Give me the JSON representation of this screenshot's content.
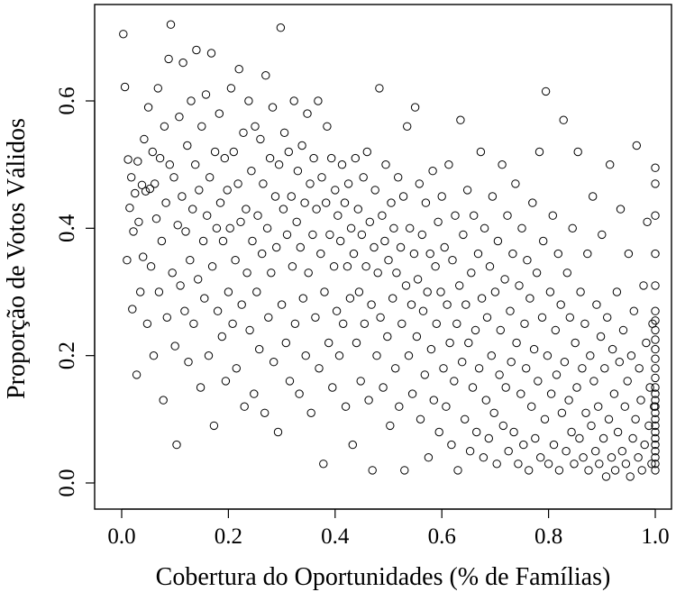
{
  "chart_data": {
    "type": "scatter",
    "title": "",
    "xlabel": "Cobertura do Oportunidades (% de Famílias)",
    "ylabel": "Proporção de Votos Válidos",
    "xlim": [
      0.0,
      1.0
    ],
    "ylim": [
      0.0,
      0.72
    ],
    "x_ticks": [
      "0.0",
      "0.2",
      "0.4",
      "0.6",
      "0.8",
      "1.0"
    ],
    "y_ticks": [
      "0.0",
      "0.2",
      "0.4",
      "0.6"
    ],
    "grid": false,
    "legend": "none",
    "marker": "open-circle",
    "point_count_estimate": 2300,
    "points": [
      [
        0.003,
        0.705
      ],
      [
        0.006,
        0.622
      ],
      [
        0.01,
        0.35
      ],
      [
        0.012,
        0.508
      ],
      [
        0.015,
        0.432
      ],
      [
        0.018,
        0.48
      ],
      [
        0.02,
        0.273
      ],
      [
        0.022,
        0.395
      ],
      [
        0.025,
        0.455
      ],
      [
        0.028,
        0.17
      ],
      [
        0.03,
        0.505
      ],
      [
        0.032,
        0.41
      ],
      [
        0.035,
        0.3
      ],
      [
        0.038,
        0.468
      ],
      [
        0.04,
        0.355
      ],
      [
        0.042,
        0.54
      ],
      [
        0.045,
        0.458
      ],
      [
        0.048,
        0.25
      ],
      [
        0.05,
        0.59
      ],
      [
        0.053,
        0.462
      ],
      [
        0.055,
        0.34
      ],
      [
        0.058,
        0.52
      ],
      [
        0.06,
        0.2
      ],
      [
        0.062,
        0.47
      ],
      [
        0.065,
        0.415
      ],
      [
        0.068,
        0.62
      ],
      [
        0.07,
        0.3
      ],
      [
        0.072,
        0.51
      ],
      [
        0.075,
        0.38
      ],
      [
        0.078,
        0.13
      ],
      [
        0.08,
        0.56
      ],
      [
        0.083,
        0.44
      ],
      [
        0.085,
        0.26
      ],
      [
        0.088,
        0.666
      ],
      [
        0.09,
        0.5
      ],
      [
        0.092,
        0.72
      ],
      [
        0.095,
        0.33
      ],
      [
        0.098,
        0.48
      ],
      [
        0.1,
        0.215
      ],
      [
        0.103,
        0.06
      ],
      [
        0.105,
        0.405
      ],
      [
        0.108,
        0.575
      ],
      [
        0.11,
        0.31
      ],
      [
        0.113,
        0.45
      ],
      [
        0.115,
        0.66
      ],
      [
        0.118,
        0.27
      ],
      [
        0.12,
        0.395
      ],
      [
        0.123,
        0.53
      ],
      [
        0.125,
        0.19
      ],
      [
        0.128,
        0.35
      ],
      [
        0.13,
        0.6
      ],
      [
        0.133,
        0.43
      ],
      [
        0.135,
        0.25
      ],
      [
        0.138,
        0.5
      ],
      [
        0.14,
        0.68
      ],
      [
        0.143,
        0.32
      ],
      [
        0.145,
        0.46
      ],
      [
        0.148,
        0.15
      ],
      [
        0.15,
        0.56
      ],
      [
        0.153,
        0.38
      ],
      [
        0.155,
        0.29
      ],
      [
        0.158,
        0.61
      ],
      [
        0.16,
        0.42
      ],
      [
        0.163,
        0.2
      ],
      [
        0.165,
        0.48
      ],
      [
        0.168,
        0.675
      ],
      [
        0.17,
        0.34
      ],
      [
        0.173,
        0.09
      ],
      [
        0.175,
        0.52
      ],
      [
        0.178,
        0.4
      ],
      [
        0.18,
        0.27
      ],
      [
        0.183,
        0.58
      ],
      [
        0.185,
        0.44
      ],
      [
        0.188,
        0.23
      ],
      [
        0.19,
        0.38
      ],
      [
        0.193,
        0.51
      ],
      [
        0.195,
        0.16
      ],
      [
        0.198,
        0.46
      ],
      [
        0.2,
        0.3
      ],
      [
        0.203,
        0.4
      ],
      [
        0.205,
        0.62
      ],
      [
        0.208,
        0.25
      ],
      [
        0.21,
        0.52
      ],
      [
        0.213,
        0.35
      ],
      [
        0.215,
        0.18
      ],
      [
        0.218,
        0.47
      ],
      [
        0.22,
        0.65
      ],
      [
        0.223,
        0.41
      ],
      [
        0.225,
        0.28
      ],
      [
        0.228,
        0.55
      ],
      [
        0.23,
        0.12
      ],
      [
        0.233,
        0.43
      ],
      [
        0.235,
        0.33
      ],
      [
        0.238,
        0.6
      ],
      [
        0.24,
        0.24
      ],
      [
        0.243,
        0.49
      ],
      [
        0.245,
        0.38
      ],
      [
        0.248,
        0.14
      ],
      [
        0.25,
        0.56
      ],
      [
        0.253,
        0.3
      ],
      [
        0.255,
        0.42
      ],
      [
        0.258,
        0.21
      ],
      [
        0.26,
        0.54
      ],
      [
        0.263,
        0.36
      ],
      [
        0.265,
        0.47
      ],
      [
        0.268,
        0.11
      ],
      [
        0.27,
        0.64
      ],
      [
        0.273,
        0.4
      ],
      [
        0.275,
        0.26
      ],
      [
        0.278,
        0.51
      ],
      [
        0.28,
        0.33
      ],
      [
        0.283,
        0.59
      ],
      [
        0.285,
        0.19
      ],
      [
        0.288,
        0.45
      ],
      [
        0.29,
        0.37
      ],
      [
        0.293,
        0.08
      ],
      [
        0.295,
        0.5
      ],
      [
        0.298,
        0.715
      ],
      [
        0.3,
        0.28
      ],
      [
        0.303,
        0.43
      ],
      [
        0.305,
        0.55
      ],
      [
        0.308,
        0.22
      ],
      [
        0.31,
        0.39
      ],
      [
        0.313,
        0.52
      ],
      [
        0.315,
        0.16
      ],
      [
        0.318,
        0.45
      ],
      [
        0.32,
        0.34
      ],
      [
        0.323,
        0.6
      ],
      [
        0.325,
        0.25
      ],
      [
        0.328,
        0.41
      ],
      [
        0.33,
        0.49
      ],
      [
        0.333,
        0.14
      ],
      [
        0.335,
        0.37
      ],
      [
        0.338,
        0.53
      ],
      [
        0.34,
        0.29
      ],
      [
        0.343,
        0.44
      ],
      [
        0.345,
        0.2
      ],
      [
        0.348,
        0.58
      ],
      [
        0.35,
        0.33
      ],
      [
        0.353,
        0.47
      ],
      [
        0.355,
        0.11
      ],
      [
        0.358,
        0.39
      ],
      [
        0.36,
        0.51
      ],
      [
        0.363,
        0.26
      ],
      [
        0.365,
        0.43
      ],
      [
        0.368,
        0.6
      ],
      [
        0.37,
        0.18
      ],
      [
        0.373,
        0.36
      ],
      [
        0.375,
        0.48
      ],
      [
        0.378,
        0.03
      ],
      [
        0.38,
        0.3
      ],
      [
        0.383,
        0.44
      ],
      [
        0.385,
        0.56
      ],
      [
        0.388,
        0.22
      ],
      [
        0.39,
        0.39
      ],
      [
        0.393,
        0.51
      ],
      [
        0.395,
        0.15
      ],
      [
        0.398,
        0.34
      ],
      [
        0.4,
        0.46
      ],
      [
        0.403,
        0.27
      ],
      [
        0.405,
        0.42
      ],
      [
        0.408,
        0.2
      ],
      [
        0.41,
        0.38
      ],
      [
        0.413,
        0.5
      ],
      [
        0.415,
        0.25
      ],
      [
        0.418,
        0.44
      ],
      [
        0.42,
        0.12
      ],
      [
        0.423,
        0.34
      ],
      [
        0.425,
        0.47
      ],
      [
        0.428,
        0.29
      ],
      [
        0.43,
        0.4
      ],
      [
        0.433,
        0.06
      ],
      [
        0.435,
        0.36
      ],
      [
        0.438,
        0.51
      ],
      [
        0.44,
        0.22
      ],
      [
        0.443,
        0.43
      ],
      [
        0.445,
        0.3
      ],
      [
        0.448,
        0.16
      ],
      [
        0.45,
        0.39
      ],
      [
        0.453,
        0.48
      ],
      [
        0.455,
        0.25
      ],
      [
        0.458,
        0.34
      ],
      [
        0.46,
        0.52
      ],
      [
        0.463,
        0.13
      ],
      [
        0.465,
        0.41
      ],
      [
        0.468,
        0.28
      ],
      [
        0.47,
        0.02
      ],
      [
        0.473,
        0.37
      ],
      [
        0.475,
        0.46
      ],
      [
        0.478,
        0.2
      ],
      [
        0.48,
        0.33
      ],
      [
        0.483,
        0.62
      ],
      [
        0.485,
        0.26
      ],
      [
        0.488,
        0.42
      ],
      [
        0.49,
        0.15
      ],
      [
        0.493,
        0.38
      ],
      [
        0.495,
        0.5
      ],
      [
        0.498,
        0.23
      ],
      [
        0.5,
        0.35
      ],
      [
        0.503,
        0.09
      ],
      [
        0.505,
        0.44
      ],
      [
        0.508,
        0.29
      ],
      [
        0.51,
        0.4
      ],
      [
        0.513,
        0.18
      ],
      [
        0.515,
        0.33
      ],
      [
        0.518,
        0.48
      ],
      [
        0.52,
        0.12
      ],
      [
        0.523,
        0.37
      ],
      [
        0.525,
        0.25
      ],
      [
        0.528,
        0.45
      ],
      [
        0.53,
        0.02
      ],
      [
        0.533,
        0.31
      ],
      [
        0.535,
        0.56
      ],
      [
        0.538,
        0.2
      ],
      [
        0.54,
        0.4
      ],
      [
        0.543,
        0.28
      ],
      [
        0.545,
        0.14
      ],
      [
        0.548,
        0.36
      ],
      [
        0.55,
        0.59
      ],
      [
        0.553,
        0.23
      ],
      [
        0.555,
        0.32
      ],
      [
        0.558,
        0.47
      ],
      [
        0.56,
        0.1
      ],
      [
        0.563,
        0.39
      ],
      [
        0.565,
        0.27
      ],
      [
        0.568,
        0.17
      ],
      [
        0.57,
        0.44
      ],
      [
        0.573,
        0.3
      ],
      [
        0.575,
        0.04
      ],
      [
        0.578,
        0.36
      ],
      [
        0.58,
        0.21
      ],
      [
        0.583,
        0.49
      ],
      [
        0.585,
        0.13
      ],
      [
        0.588,
        0.34
      ],
      [
        0.59,
        0.25
      ],
      [
        0.593,
        0.41
      ],
      [
        0.595,
        0.08
      ],
      [
        0.598,
        0.3
      ],
      [
        0.6,
        0.45
      ],
      [
        0.603,
        0.18
      ],
      [
        0.605,
        0.37
      ],
      [
        0.608,
        0.12
      ],
      [
        0.61,
        0.28
      ],
      [
        0.613,
        0.5
      ],
      [
        0.615,
        0.22
      ],
      [
        0.618,
        0.06
      ],
      [
        0.62,
        0.35
      ],
      [
        0.623,
        0.16
      ],
      [
        0.625,
        0.42
      ],
      [
        0.628,
        0.25
      ],
      [
        0.63,
        0.02
      ],
      [
        0.633,
        0.31
      ],
      [
        0.635,
        0.57
      ],
      [
        0.638,
        0.19
      ],
      [
        0.64,
        0.39
      ],
      [
        0.643,
        0.1
      ],
      [
        0.645,
        0.28
      ],
      [
        0.648,
        0.46
      ],
      [
        0.65,
        0.22
      ],
      [
        0.653,
        0.05
      ],
      [
        0.655,
        0.33
      ],
      [
        0.658,
        0.15
      ],
      [
        0.66,
        0.42
      ],
      [
        0.663,
        0.24
      ],
      [
        0.665,
        0.08
      ],
      [
        0.668,
        0.36
      ],
      [
        0.67,
        0.18
      ],
      [
        0.673,
        0.52
      ],
      [
        0.675,
        0.29
      ],
      [
        0.678,
        0.04
      ],
      [
        0.68,
        0.4
      ],
      [
        0.683,
        0.13
      ],
      [
        0.685,
        0.26
      ],
      [
        0.688,
        0.07
      ],
      [
        0.69,
        0.34
      ],
      [
        0.693,
        0.2
      ],
      [
        0.695,
        0.45
      ],
      [
        0.698,
        0.11
      ],
      [
        0.7,
        0.3
      ],
      [
        0.703,
        0.03
      ],
      [
        0.705,
        0.38
      ],
      [
        0.708,
        0.17
      ],
      [
        0.71,
        0.24
      ],
      [
        0.713,
        0.5
      ],
      [
        0.715,
        0.09
      ],
      [
        0.718,
        0.32
      ],
      [
        0.72,
        0.15
      ],
      [
        0.723,
        0.42
      ],
      [
        0.725,
        0.05
      ],
      [
        0.728,
        0.27
      ],
      [
        0.73,
        0.19
      ],
      [
        0.733,
        0.36
      ],
      [
        0.735,
        0.08
      ],
      [
        0.738,
        0.47
      ],
      [
        0.74,
        0.22
      ],
      [
        0.743,
        0.03
      ],
      [
        0.745,
        0.31
      ],
      [
        0.748,
        0.14
      ],
      [
        0.75,
        0.4
      ],
      [
        0.753,
        0.06
      ],
      [
        0.755,
        0.25
      ],
      [
        0.758,
        0.18
      ],
      [
        0.76,
        0.35
      ],
      [
        0.763,
        0.02
      ],
      [
        0.765,
        0.29
      ],
      [
        0.768,
        0.12
      ],
      [
        0.77,
        0.44
      ],
      [
        0.773,
        0.21
      ],
      [
        0.775,
        0.07
      ],
      [
        0.778,
        0.33
      ],
      [
        0.78,
        0.16
      ],
      [
        0.783,
        0.52
      ],
      [
        0.785,
        0.04
      ],
      [
        0.788,
        0.26
      ],
      [
        0.79,
        0.38
      ],
      [
        0.793,
        0.1
      ],
      [
        0.795,
        0.615
      ],
      [
        0.798,
        0.2
      ],
      [
        0.8,
        0.03
      ],
      [
        0.803,
        0.3
      ],
      [
        0.805,
        0.14
      ],
      [
        0.808,
        0.42
      ],
      [
        0.81,
        0.06
      ],
      [
        0.813,
        0.24
      ],
      [
        0.815,
        0.17
      ],
      [
        0.818,
        0.36
      ],
      [
        0.82,
        0.02
      ],
      [
        0.823,
        0.28
      ],
      [
        0.825,
        0.11
      ],
      [
        0.828,
        0.57
      ],
      [
        0.83,
        0.19
      ],
      [
        0.833,
        0.05
      ],
      [
        0.835,
        0.33
      ],
      [
        0.838,
        0.13
      ],
      [
        0.84,
        0.26
      ],
      [
        0.843,
        0.08
      ],
      [
        0.845,
        0.4
      ],
      [
        0.848,
        0.03
      ],
      [
        0.85,
        0.22
      ],
      [
        0.853,
        0.15
      ],
      [
        0.855,
        0.52
      ],
      [
        0.858,
        0.07
      ],
      [
        0.86,
        0.3
      ],
      [
        0.863,
        0.18
      ],
      [
        0.865,
        0.04
      ],
      [
        0.868,
        0.25
      ],
      [
        0.87,
        0.11
      ],
      [
        0.873,
        0.36
      ],
      [
        0.875,
        0.02
      ],
      [
        0.878,
        0.2
      ],
      [
        0.88,
        0.09
      ],
      [
        0.883,
        0.45
      ],
      [
        0.885,
        0.16
      ],
      [
        0.888,
        0.05
      ],
      [
        0.89,
        0.28
      ],
      [
        0.893,
        0.12
      ],
      [
        0.895,
        0.03
      ],
      [
        0.898,
        0.23
      ],
      [
        0.9,
        0.39
      ],
      [
        0.903,
        0.07
      ],
      [
        0.905,
        0.18
      ],
      [
        0.908,
        0.01
      ],
      [
        0.91,
        0.26
      ],
      [
        0.913,
        0.1
      ],
      [
        0.915,
        0.5
      ],
      [
        0.918,
        0.04
      ],
      [
        0.92,
        0.21
      ],
      [
        0.923,
        0.14
      ],
      [
        0.925,
        0.02
      ],
      [
        0.928,
        0.3
      ],
      [
        0.93,
        0.08
      ],
      [
        0.933,
        0.19
      ],
      [
        0.935,
        0.43
      ],
      [
        0.938,
        0.05
      ],
      [
        0.94,
        0.24
      ],
      [
        0.943,
        0.12
      ],
      [
        0.945,
        0.03
      ],
      [
        0.948,
        0.16
      ],
      [
        0.95,
        0.36
      ],
      [
        0.953,
        0.01
      ],
      [
        0.955,
        0.2
      ],
      [
        0.958,
        0.07
      ],
      [
        0.96,
        0.27
      ],
      [
        0.963,
        0.1
      ],
      [
        0.965,
        0.53
      ],
      [
        0.968,
        0.04
      ],
      [
        0.97,
        0.18
      ],
      [
        0.973,
        0.13
      ],
      [
        0.975,
        0.02
      ],
      [
        0.978,
        0.31
      ],
      [
        0.98,
        0.06
      ],
      [
        0.983,
        0.22
      ],
      [
        0.985,
        0.41
      ],
      [
        0.988,
        0.09
      ],
      [
        0.99,
        0.15
      ],
      [
        0.993,
        0.03
      ],
      [
        0.995,
        0.25
      ],
      [
        0.998,
        0.12
      ],
      [
        1.0,
        0.495
      ],
      [
        1.0,
        0.47
      ],
      [
        1.0,
        0.42
      ],
      [
        1.0,
        0.36
      ],
      [
        1.0,
        0.31
      ],
      [
        1.0,
        0.27
      ],
      [
        1.0,
        0.255
      ],
      [
        1.0,
        0.24
      ],
      [
        1.0,
        0.225
      ],
      [
        1.0,
        0.21
      ],
      [
        1.0,
        0.195
      ],
      [
        1.0,
        0.18
      ],
      [
        1.0,
        0.165
      ],
      [
        1.0,
        0.15
      ],
      [
        1.0,
        0.14
      ],
      [
        1.0,
        0.13
      ],
      [
        1.0,
        0.12
      ],
      [
        1.0,
        0.11
      ],
      [
        1.0,
        0.1
      ],
      [
        1.0,
        0.09
      ],
      [
        1.0,
        0.08
      ],
      [
        1.0,
        0.07
      ],
      [
        1.0,
        0.06
      ],
      [
        1.0,
        0.05
      ],
      [
        1.0,
        0.04
      ],
      [
        1.0,
        0.03
      ],
      [
        1.0,
        0.02
      ]
    ]
  }
}
